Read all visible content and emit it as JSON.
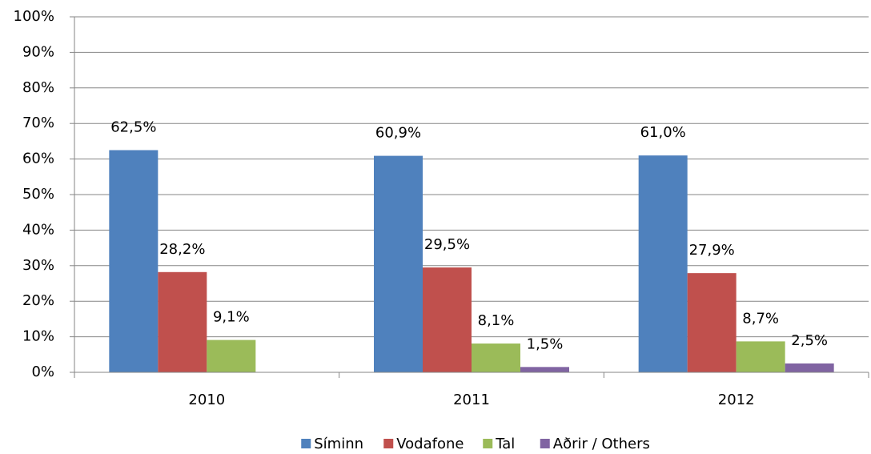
{
  "chart_data": {
    "type": "bar",
    "categories": [
      "2010",
      "2011",
      "2012"
    ],
    "series": [
      {
        "name": "Síminn",
        "color": "#4f81bd",
        "values": [
          62.5,
          60.9,
          61.0
        ],
        "value_labels": [
          "62,5%",
          "60,9%",
          "61,0%"
        ]
      },
      {
        "name": "Vodafone",
        "color": "#c0504d",
        "values": [
          28.2,
          29.5,
          27.9
        ],
        "value_labels": [
          "28,2%",
          "29,5%",
          "27,9%"
        ]
      },
      {
        "name": "Tal",
        "color": "#9bbb59",
        "values": [
          9.1,
          8.1,
          8.7
        ],
        "value_labels": [
          "9,1%",
          "8,1%",
          "8,7%"
        ]
      },
      {
        "name": "Aðrir / Others",
        "color": "#8064a2",
        "values": [
          null,
          1.5,
          2.5
        ],
        "value_labels": [
          null,
          "1,5%",
          "2,5%"
        ]
      }
    ],
    "ylim": [
      0,
      100
    ],
    "yticks": [
      {
        "value": 0,
        "label": "0%"
      },
      {
        "value": 10,
        "label": "10%"
      },
      {
        "value": 20,
        "label": "20%"
      },
      {
        "value": 30,
        "label": "30%"
      },
      {
        "value": 40,
        "label": "40%"
      },
      {
        "value": 50,
        "label": "50%"
      },
      {
        "value": 60,
        "label": "60%"
      },
      {
        "value": 70,
        "label": "70%"
      },
      {
        "value": 80,
        "label": "80%"
      },
      {
        "value": 90,
        "label": "90%"
      },
      {
        "value": 100,
        "label": "100%"
      }
    ],
    "grid": true,
    "legend": "bottom"
  }
}
